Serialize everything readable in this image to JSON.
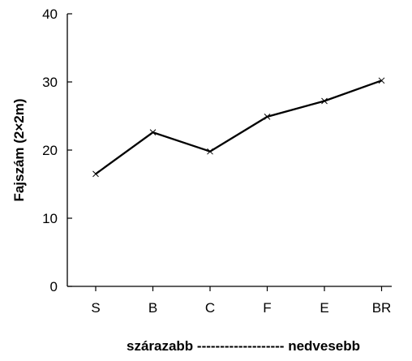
{
  "chart_data": {
    "type": "line",
    "categories": [
      "S",
      "B",
      "C",
      "F",
      "E",
      "BR"
    ],
    "values": [
      16.5,
      22.6,
      19.8,
      24.9,
      27.2,
      30.2
    ],
    "xlabel": "szárazabb ------------------- nedvesebb",
    "ylabel": "Fajszám (2×2m)",
    "ylim": [
      0,
      40
    ],
    "yticks": [
      "0",
      "10",
      "20",
      "30",
      "40"
    ],
    "marker": "x",
    "grid": false,
    "line_color": "#000000"
  }
}
